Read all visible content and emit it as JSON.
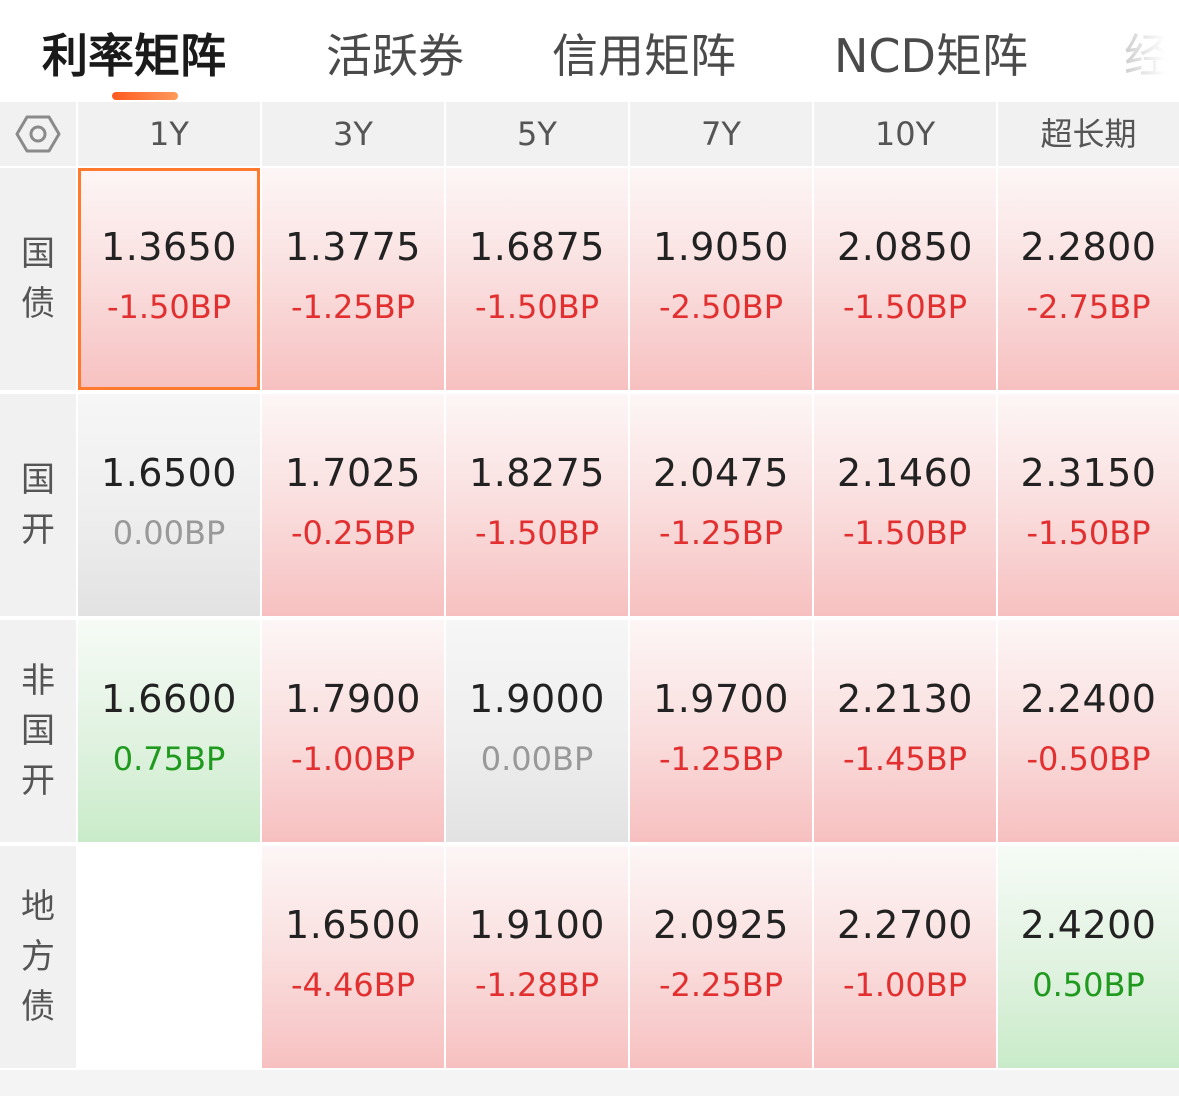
{
  "tabs": [
    "利率矩阵",
    "活跃券",
    "信用矩阵",
    "NCD矩阵",
    "经"
  ],
  "active_tab": 0,
  "header": {
    "settings_icon": "hexagon-gear-icon",
    "tenors": [
      "1Y",
      "3Y",
      "5Y",
      "7Y",
      "10Y",
      "超长期"
    ]
  },
  "rows": [
    {
      "label": "国债",
      "cells": [
        {
          "value": "1.3650",
          "change": "-1.50BP",
          "trend": "down",
          "selected": true
        },
        {
          "value": "1.3775",
          "change": "-1.25BP",
          "trend": "down"
        },
        {
          "value": "1.6875",
          "change": "-1.50BP",
          "trend": "down"
        },
        {
          "value": "1.9050",
          "change": "-2.50BP",
          "trend": "down"
        },
        {
          "value": "2.0850",
          "change": "-1.50BP",
          "trend": "down"
        },
        {
          "value": "2.2800",
          "change": "-2.75BP",
          "trend": "down"
        }
      ]
    },
    {
      "label": "国开",
      "cells": [
        {
          "value": "1.6500",
          "change": "0.00BP",
          "trend": "flat"
        },
        {
          "value": "1.7025",
          "change": "-0.25BP",
          "trend": "down"
        },
        {
          "value": "1.8275",
          "change": "-1.50BP",
          "trend": "down"
        },
        {
          "value": "2.0475",
          "change": "-1.25BP",
          "trend": "down"
        },
        {
          "value": "2.1460",
          "change": "-1.50BP",
          "trend": "down"
        },
        {
          "value": "2.3150",
          "change": "-1.50BP",
          "trend": "down"
        }
      ]
    },
    {
      "label": "非国开",
      "cells": [
        {
          "value": "1.6600",
          "change": "0.75BP",
          "trend": "up"
        },
        {
          "value": "1.7900",
          "change": "-1.00BP",
          "trend": "down"
        },
        {
          "value": "1.9000",
          "change": "0.00BP",
          "trend": "flat"
        },
        {
          "value": "1.9700",
          "change": "-1.25BP",
          "trend": "down"
        },
        {
          "value": "2.2130",
          "change": "-1.45BP",
          "trend": "down"
        },
        {
          "value": "2.2400",
          "change": "-0.50BP",
          "trend": "down"
        }
      ]
    },
    {
      "label": "地方债",
      "cells": [
        {
          "value": "",
          "change": "",
          "trend": "empty"
        },
        {
          "value": "1.6500",
          "change": "-4.46BP",
          "trend": "down"
        },
        {
          "value": "1.9100",
          "change": "-1.28BP",
          "trend": "down"
        },
        {
          "value": "2.0925",
          "change": "-2.25BP",
          "trend": "down"
        },
        {
          "value": "2.2700",
          "change": "-1.00BP",
          "trend": "down"
        },
        {
          "value": "2.4200",
          "change": "0.50BP",
          "trend": "up"
        }
      ]
    }
  ],
  "colors": {
    "down": "#e23030",
    "up": "#1f9a1f",
    "flat": "#999999",
    "accent": "#ff7a2f"
  }
}
